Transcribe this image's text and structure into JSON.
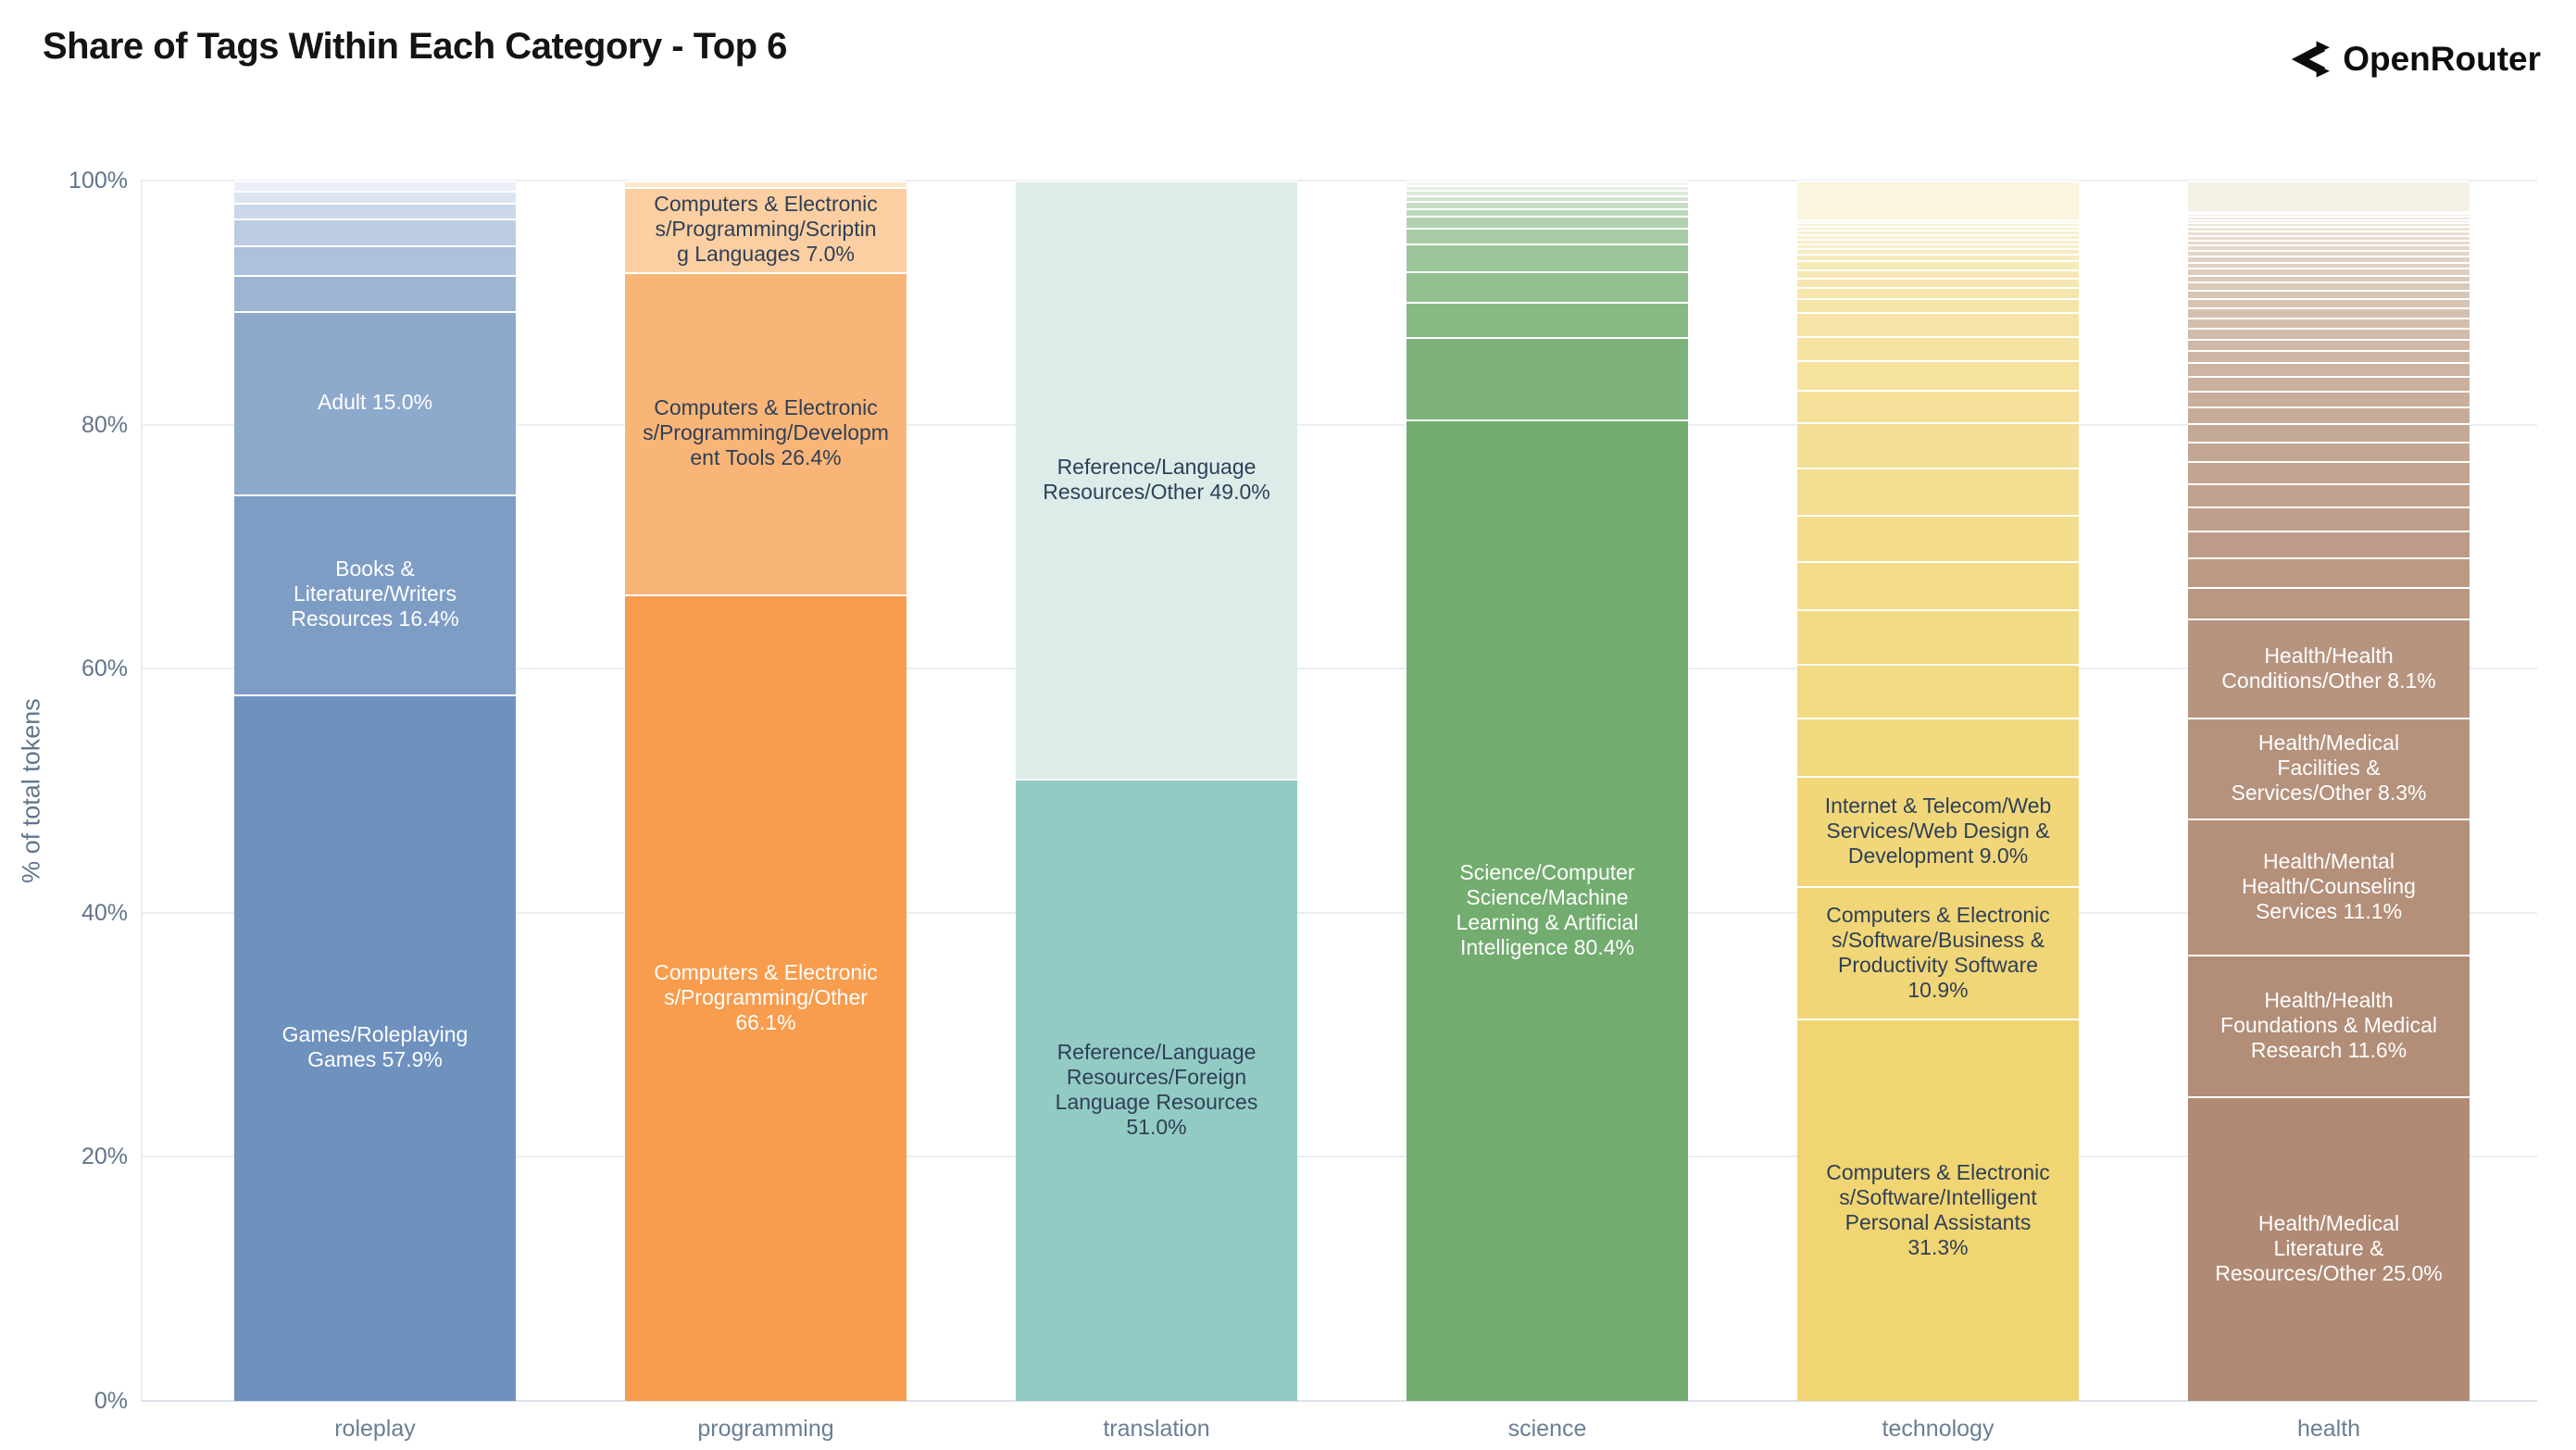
{
  "header": {
    "title": "Share of Tags Within Each Category - Top 6",
    "brand": "OpenRouter"
  },
  "axes": {
    "y_title": "% of total tokens",
    "y_ticks": [
      "0%",
      "20%",
      "40%",
      "60%",
      "80%",
      "100%"
    ]
  },
  "colors": {
    "title_text": "#141414",
    "axis_text": "#63748b",
    "category_text": "#6a7e95",
    "label_dark_text": "#2f3f57",
    "label_light_text": "#ffffff",
    "gridline": "#eceef1"
  },
  "chart_data": {
    "type": "bar",
    "stacked": true,
    "normalized": "percent",
    "title": "Share of Tags Within Each Category - Top 6",
    "xlabel": "",
    "ylabel": "% of total tokens",
    "ylim": [
      0,
      100
    ],
    "grid": true,
    "legend": "none",
    "categories": [
      "roleplay",
      "programming",
      "translation",
      "science",
      "technology",
      "health"
    ],
    "bars": [
      {
        "category": "roleplay",
        "palette": {
          "dark": "#6E91BE",
          "light": "#EAF0F7"
        },
        "segments": [
          {
            "v": 57.9,
            "tag": "Games/Roleplaying Games",
            "label": "Games/Roleplaying\nGames 57.9%",
            "text": "light"
          },
          {
            "v": 16.4,
            "tag": "Books & Literature/Writers Resources",
            "label": "Books &\nLiterature/Writers\nResources 16.4%",
            "text": "light"
          },
          {
            "v": 15.0,
            "tag": "Adult",
            "label": "Adult 15.0%",
            "text": "light"
          },
          {
            "v": 3.0
          },
          {
            "v": 2.4
          },
          {
            "v": 2.2
          },
          {
            "v": 1.3
          },
          {
            "v": 1.0
          },
          {
            "v": 0.8
          }
        ]
      },
      {
        "category": "programming",
        "palette": {
          "dark": "#F89C4D",
          "light": "#FCE8CB"
        },
        "segments": [
          {
            "v": 66.1,
            "tag": "Computers & Electronics/Programming/Other",
            "label": "Computers & Electronic\ns/Programming/Other\n66.1%",
            "text": "light"
          },
          {
            "v": 26.4,
            "tag": "Computers & Electronics/Programming/Development Tools",
            "label": "Computers & Electronic\ns/Programming/Developm\nent Tools 26.4%",
            "text": "dark"
          },
          {
            "v": 7.0,
            "tag": "Computers & Electronics/Programming/Scripting Languages",
            "label": "Computers & Electronic\ns/Programming/Scriptin\ng Languages 7.0%",
            "text": "dark"
          },
          {
            "v": 0.5
          }
        ]
      },
      {
        "category": "translation",
        "palette": {
          "dark": "#92CBC3",
          "light": "#DCECE9"
        },
        "segments": [
          {
            "v": 51.0,
            "tag": "Reference/Language Resources/Foreign Language Resources",
            "label": "Reference/Language\nResources/Foreign\nLanguage Resources\n51.0%",
            "text": "dark"
          },
          {
            "v": 49.0,
            "tag": "Reference/Language Resources/Other",
            "label": "Reference/Language\nResources/Other 49.0%",
            "text": "dark"
          }
        ]
      },
      {
        "category": "science",
        "palette": {
          "dark": "#72AC6F",
          "light": "#F1F7EF"
        },
        "segments": [
          {
            "v": 80.4,
            "tag": "Science/Computer Science/Machine Learning & Artificial Intelligence",
            "label": "Science/Computer\nScience/Machine\nLearning & Artificial\nIntelligence 80.4%",
            "text": "light"
          },
          {
            "v": 6.75
          },
          {
            "v": 2.9
          },
          {
            "v": 2.5
          },
          {
            "v": 2.3
          },
          {
            "v": 1.3
          },
          {
            "v": 1.0
          },
          {
            "v": 0.6
          },
          {
            "v": 0.55
          },
          {
            "v": 0.5
          },
          {
            "v": 0.45
          },
          {
            "v": 0.4
          },
          {
            "v": 0.35
          }
        ]
      },
      {
        "category": "technology",
        "palette": {
          "dark": "#F0D572",
          "light": "#FAF5DF"
        },
        "segments": [
          {
            "v": 31.3,
            "tag": "Computers & Electronics/Software/Intelligent Personal Assistants",
            "label": "Computers & Electronic\ns/Software/Intelligent\nPersonal Assistants\n31.3%",
            "text": "dark"
          },
          {
            "v": 10.9,
            "tag": "Computers & Electronics/Software/Business & Productivity Software",
            "label": "Computers & Electronic\ns/Software/Business &\nProductivity Software\n10.9%",
            "text": "dark"
          },
          {
            "v": 9.0,
            "tag": "Internet & Telecom/Web Services/Web Design & Development",
            "label": "Internet & Telecom/Web\nServices/Web Design &\nDevelopment 9.0%",
            "text": "dark"
          },
          {
            "v": 4.8
          },
          {
            "v": 4.4
          },
          {
            "v": 4.5
          },
          {
            "v": 3.9
          },
          {
            "v": 3.8
          },
          {
            "v": 3.9
          },
          {
            "v": 3.7
          },
          {
            "v": 2.65
          },
          {
            "v": 2.4
          },
          {
            "v": 2.0
          },
          {
            "v": 2.0
          },
          {
            "v": 1.1
          },
          {
            "v": 0.9
          },
          {
            "v": 0.75
          },
          {
            "v": 0.75
          },
          {
            "v": 0.7
          },
          {
            "v": 0.55
          },
          {
            "v": 0.45
          },
          {
            "v": 0.4
          },
          {
            "v": 0.4
          },
          {
            "v": 0.35
          },
          {
            "v": 0.35
          },
          {
            "v": 0.3
          },
          {
            "v": 0.3
          },
          {
            "v": 0.25
          },
          {
            "v": 3.2
          }
        ]
      },
      {
        "category": "health",
        "palette": {
          "dark": "#B08A74",
          "light": "#F6F1E7"
        },
        "segments": [
          {
            "v": 25.0,
            "tag": "Health/Medical Literature & Resources/Other",
            "label": "Health/Medical\nLiterature &\nResources/Other 25.0%",
            "text": "light"
          },
          {
            "v": 11.6,
            "tag": "Health/Health Foundations & Medical Research",
            "label": "Health/Health\nFoundations & Medical\nResearch 11.6%",
            "text": "light"
          },
          {
            "v": 11.1,
            "tag": "Health/Mental Health/Counseling Services",
            "label": "Health/Mental\nHealth/Counseling\nServices 11.1%",
            "text": "light"
          },
          {
            "v": 8.3,
            "tag": "Health/Medical Facilities & Services/Other",
            "label": "Health/Medical\nFacilities &\nServices/Other 8.3%",
            "text": "light"
          },
          {
            "v": 8.1,
            "tag": "Health/Health Conditions/Other",
            "label": "Health/Health\nConditions/Other 8.1%",
            "text": "light"
          },
          {
            "v": 2.6
          },
          {
            "v": 2.4
          },
          {
            "v": 2.2
          },
          {
            "v": 2.0
          },
          {
            "v": 1.9
          },
          {
            "v": 1.8
          },
          {
            "v": 1.6
          },
          {
            "v": 1.5
          },
          {
            "v": 1.4
          },
          {
            "v": 1.3
          },
          {
            "v": 1.2
          },
          {
            "v": 1.1
          },
          {
            "v": 1.0
          },
          {
            "v": 0.95
          },
          {
            "v": 0.9
          },
          {
            "v": 0.85
          },
          {
            "v": 0.8
          },
          {
            "v": 0.75
          },
          {
            "v": 0.7
          },
          {
            "v": 0.65
          },
          {
            "v": 0.6
          },
          {
            "v": 0.55
          },
          {
            "v": 0.5
          },
          {
            "v": 0.5
          },
          {
            "v": 0.45
          },
          {
            "v": 0.45
          },
          {
            "v": 0.4
          },
          {
            "v": 0.4
          },
          {
            "v": 0.35
          },
          {
            "v": 0.35
          },
          {
            "v": 0.3
          },
          {
            "v": 0.3
          },
          {
            "v": 0.25
          },
          {
            "v": 0.25
          },
          {
            "v": 0.15
          },
          {
            "v": 2.5
          }
        ]
      }
    ]
  }
}
